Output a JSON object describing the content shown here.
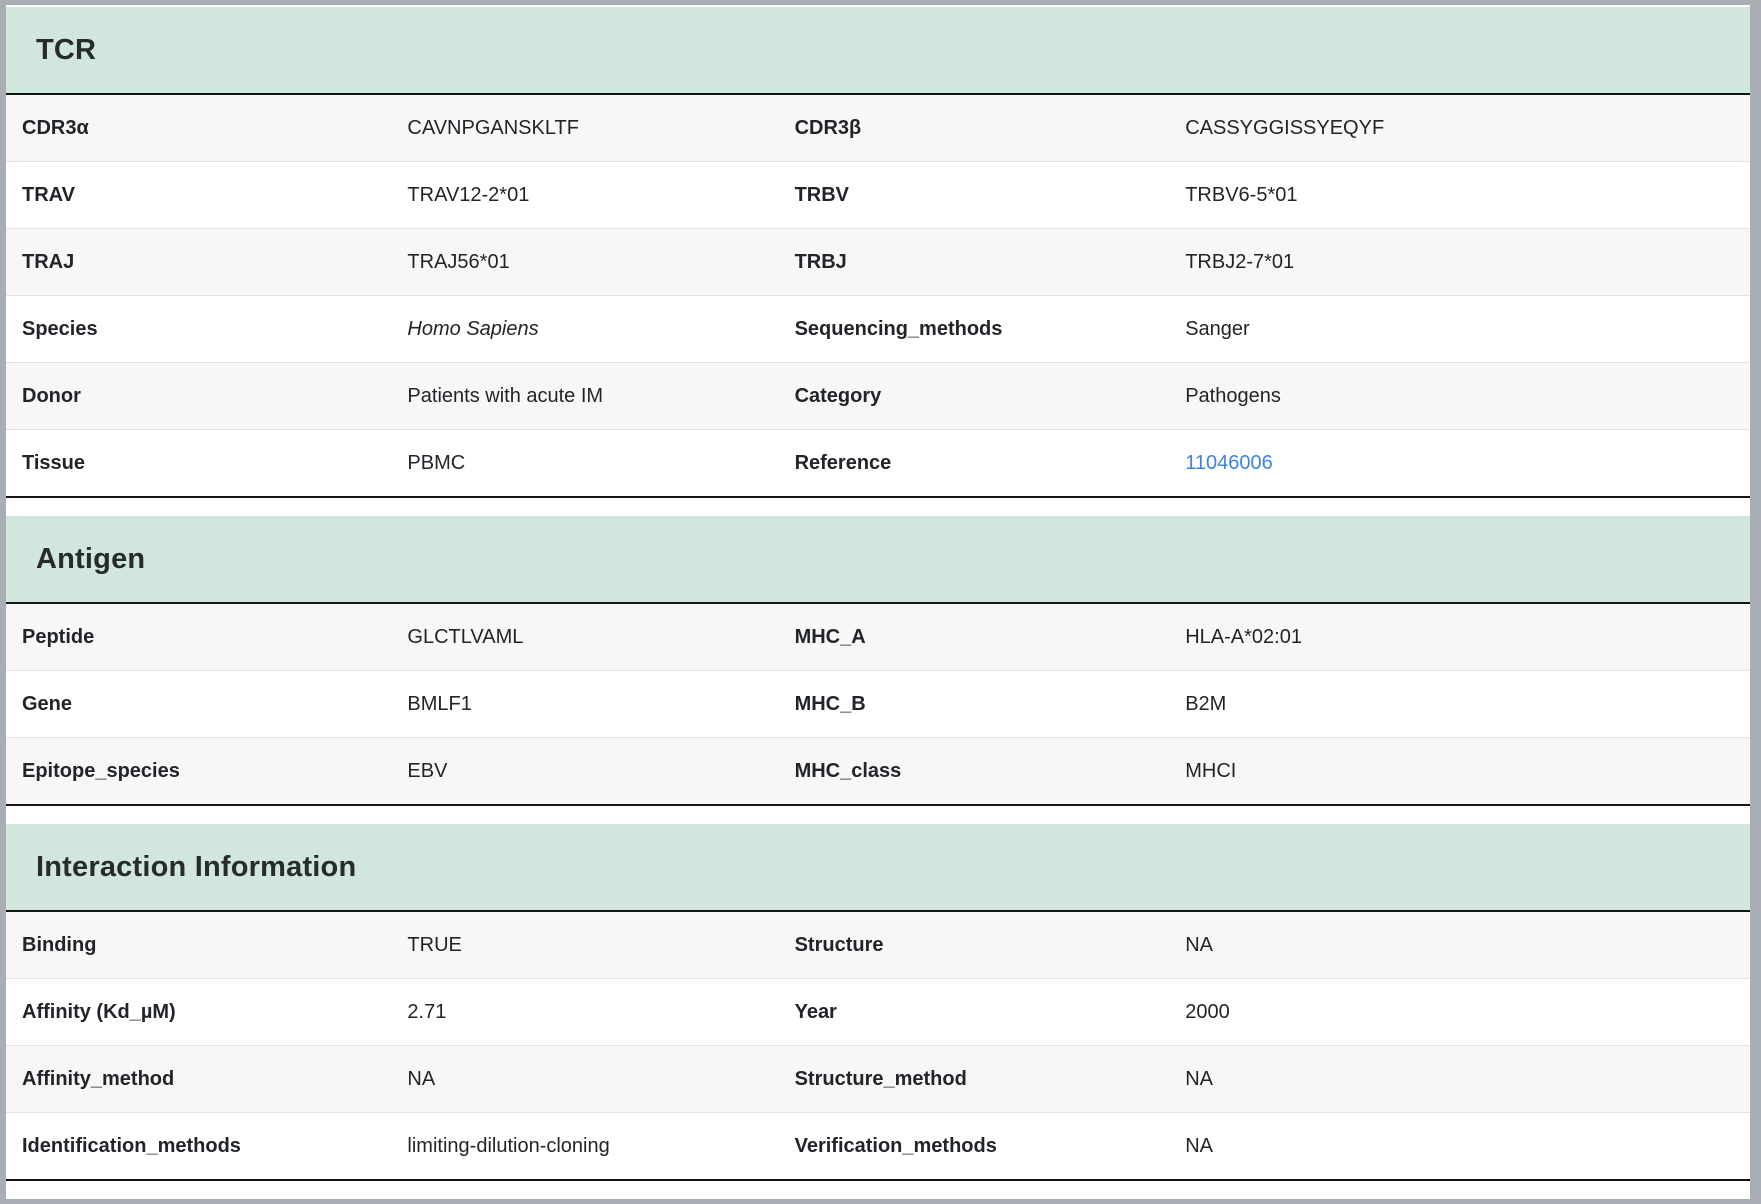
{
  "colors": {
    "accent": "#d1e7dd",
    "link": "#3d85d9",
    "frame": "#a8aeb4",
    "stripe": "#f7f7f7",
    "dark": "#141414",
    "sep": "#e2e2e2",
    "text": "#212529"
  },
  "sections": [
    {
      "title": "TCR",
      "rows": [
        {
          "label_a": "CDR3α",
          "value_a": "CAVNPGANSKLTF",
          "label_b": "CDR3β",
          "value_b": "CASSYGGISSYEQYF"
        },
        {
          "label_a": "TRAV",
          "value_a": "TRAV12-2*01",
          "label_b": "TRBV",
          "value_b": "TRBV6-5*01"
        },
        {
          "label_a": "TRAJ",
          "value_a": "TRAJ56*01",
          "label_b": "TRBJ",
          "value_b": "TRBJ2-7*01"
        },
        {
          "label_a": "Species",
          "value_a": "Homo Sapiens",
          "label_b": "Sequencing_methods",
          "value_b": "Sanger"
        },
        {
          "label_a": "Donor",
          "value_a": "Patients with acute IM",
          "label_b": "Category",
          "value_b": "Pathogens"
        },
        {
          "label_a": "Tissue",
          "value_a": "PBMC",
          "label_b": "Reference",
          "value_b": "11046006"
        }
      ]
    },
    {
      "title": "Antigen",
      "rows": [
        {
          "label_a": "Peptide",
          "value_a": "GLCTLVAML",
          "label_b": "MHC_A",
          "value_b": "HLA-A*02:01"
        },
        {
          "label_a": "Gene",
          "value_a": "BMLF1",
          "label_b": "MHC_B",
          "value_b": "B2M"
        },
        {
          "label_a": "Epitope_species",
          "value_a": "EBV",
          "label_b": "MHC_class",
          "value_b": "MHCI"
        }
      ]
    },
    {
      "title": "Interaction Information",
      "rows": [
        {
          "label_a": "Binding",
          "value_a": "TRUE",
          "label_b": "Structure",
          "value_b": "NA"
        },
        {
          "label_a": "Affinity (Kd_µM)",
          "value_a": "2.71",
          "label_b": "Year",
          "value_b": "2000"
        },
        {
          "label_a": "Affinity_method",
          "value_a": "NA",
          "label_b": "Structure_method",
          "value_b": "NA"
        },
        {
          "label_a": "Identification_methods",
          "value_a": "limiting-dilution-cloning",
          "label_b": "Verification_methods",
          "value_b": "NA"
        }
      ]
    }
  ]
}
